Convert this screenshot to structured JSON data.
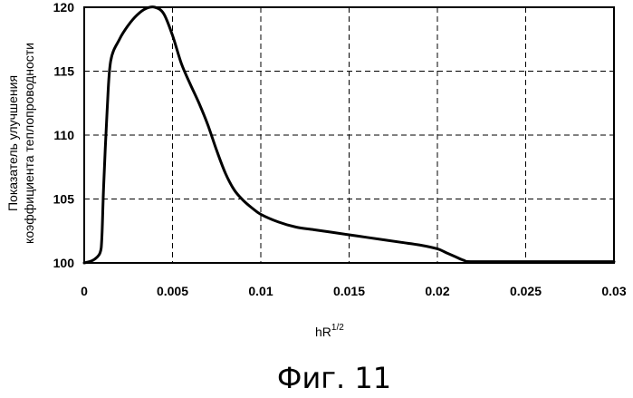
{
  "chart_data": {
    "type": "line",
    "title": "",
    "xlabel": "hR",
    "xlabel_superscript": "1/2",
    "ylabel_lines": [
      "Показатель улучшения",
      "коэффициента теплопроводности"
    ],
    "xlim": [
      0,
      0.03
    ],
    "ylim": [
      100,
      120
    ],
    "xticks": [
      "0",
      "0.005",
      "0.01",
      "0.015",
      "0.02",
      "0.025",
      "0.03"
    ],
    "yticks": [
      "100",
      "105",
      "110",
      "115",
      "120"
    ],
    "grid": true,
    "grid_style": "dashed",
    "line_color": "#000000",
    "series": [
      {
        "x": [
          0,
          0.0003,
          0.0006,
          0.0009,
          0.001,
          0.0011,
          0.0013,
          0.0015,
          0.002,
          0.0025,
          0.003,
          0.0035,
          0.004,
          0.0045,
          0.005,
          0.0055,
          0.006,
          0.0065,
          0.007,
          0.0075,
          0.008,
          0.0085,
          0.009,
          0.0095,
          0.01,
          0.011,
          0.012,
          0.013,
          0.014,
          0.015,
          0.016,
          0.017,
          0.018,
          0.019,
          0.02,
          0.0205,
          0.021,
          0.0215,
          0.022,
          0.025,
          0.03
        ],
        "values": [
          100,
          100.1,
          100.3,
          100.8,
          102.0,
          106.0,
          112.0,
          115.8,
          117.5,
          118.6,
          119.4,
          119.9,
          120.0,
          119.5,
          117.8,
          115.6,
          114.0,
          112.5,
          110.8,
          108.8,
          107.0,
          105.7,
          104.9,
          104.3,
          103.8,
          103.2,
          102.8,
          102.6,
          102.4,
          102.2,
          102.0,
          101.8,
          101.6,
          101.4,
          101.1,
          100.8,
          100.5,
          100.2,
          100.1,
          100.1,
          100.1
        ]
      }
    ]
  },
  "caption": "Фиг. 11"
}
